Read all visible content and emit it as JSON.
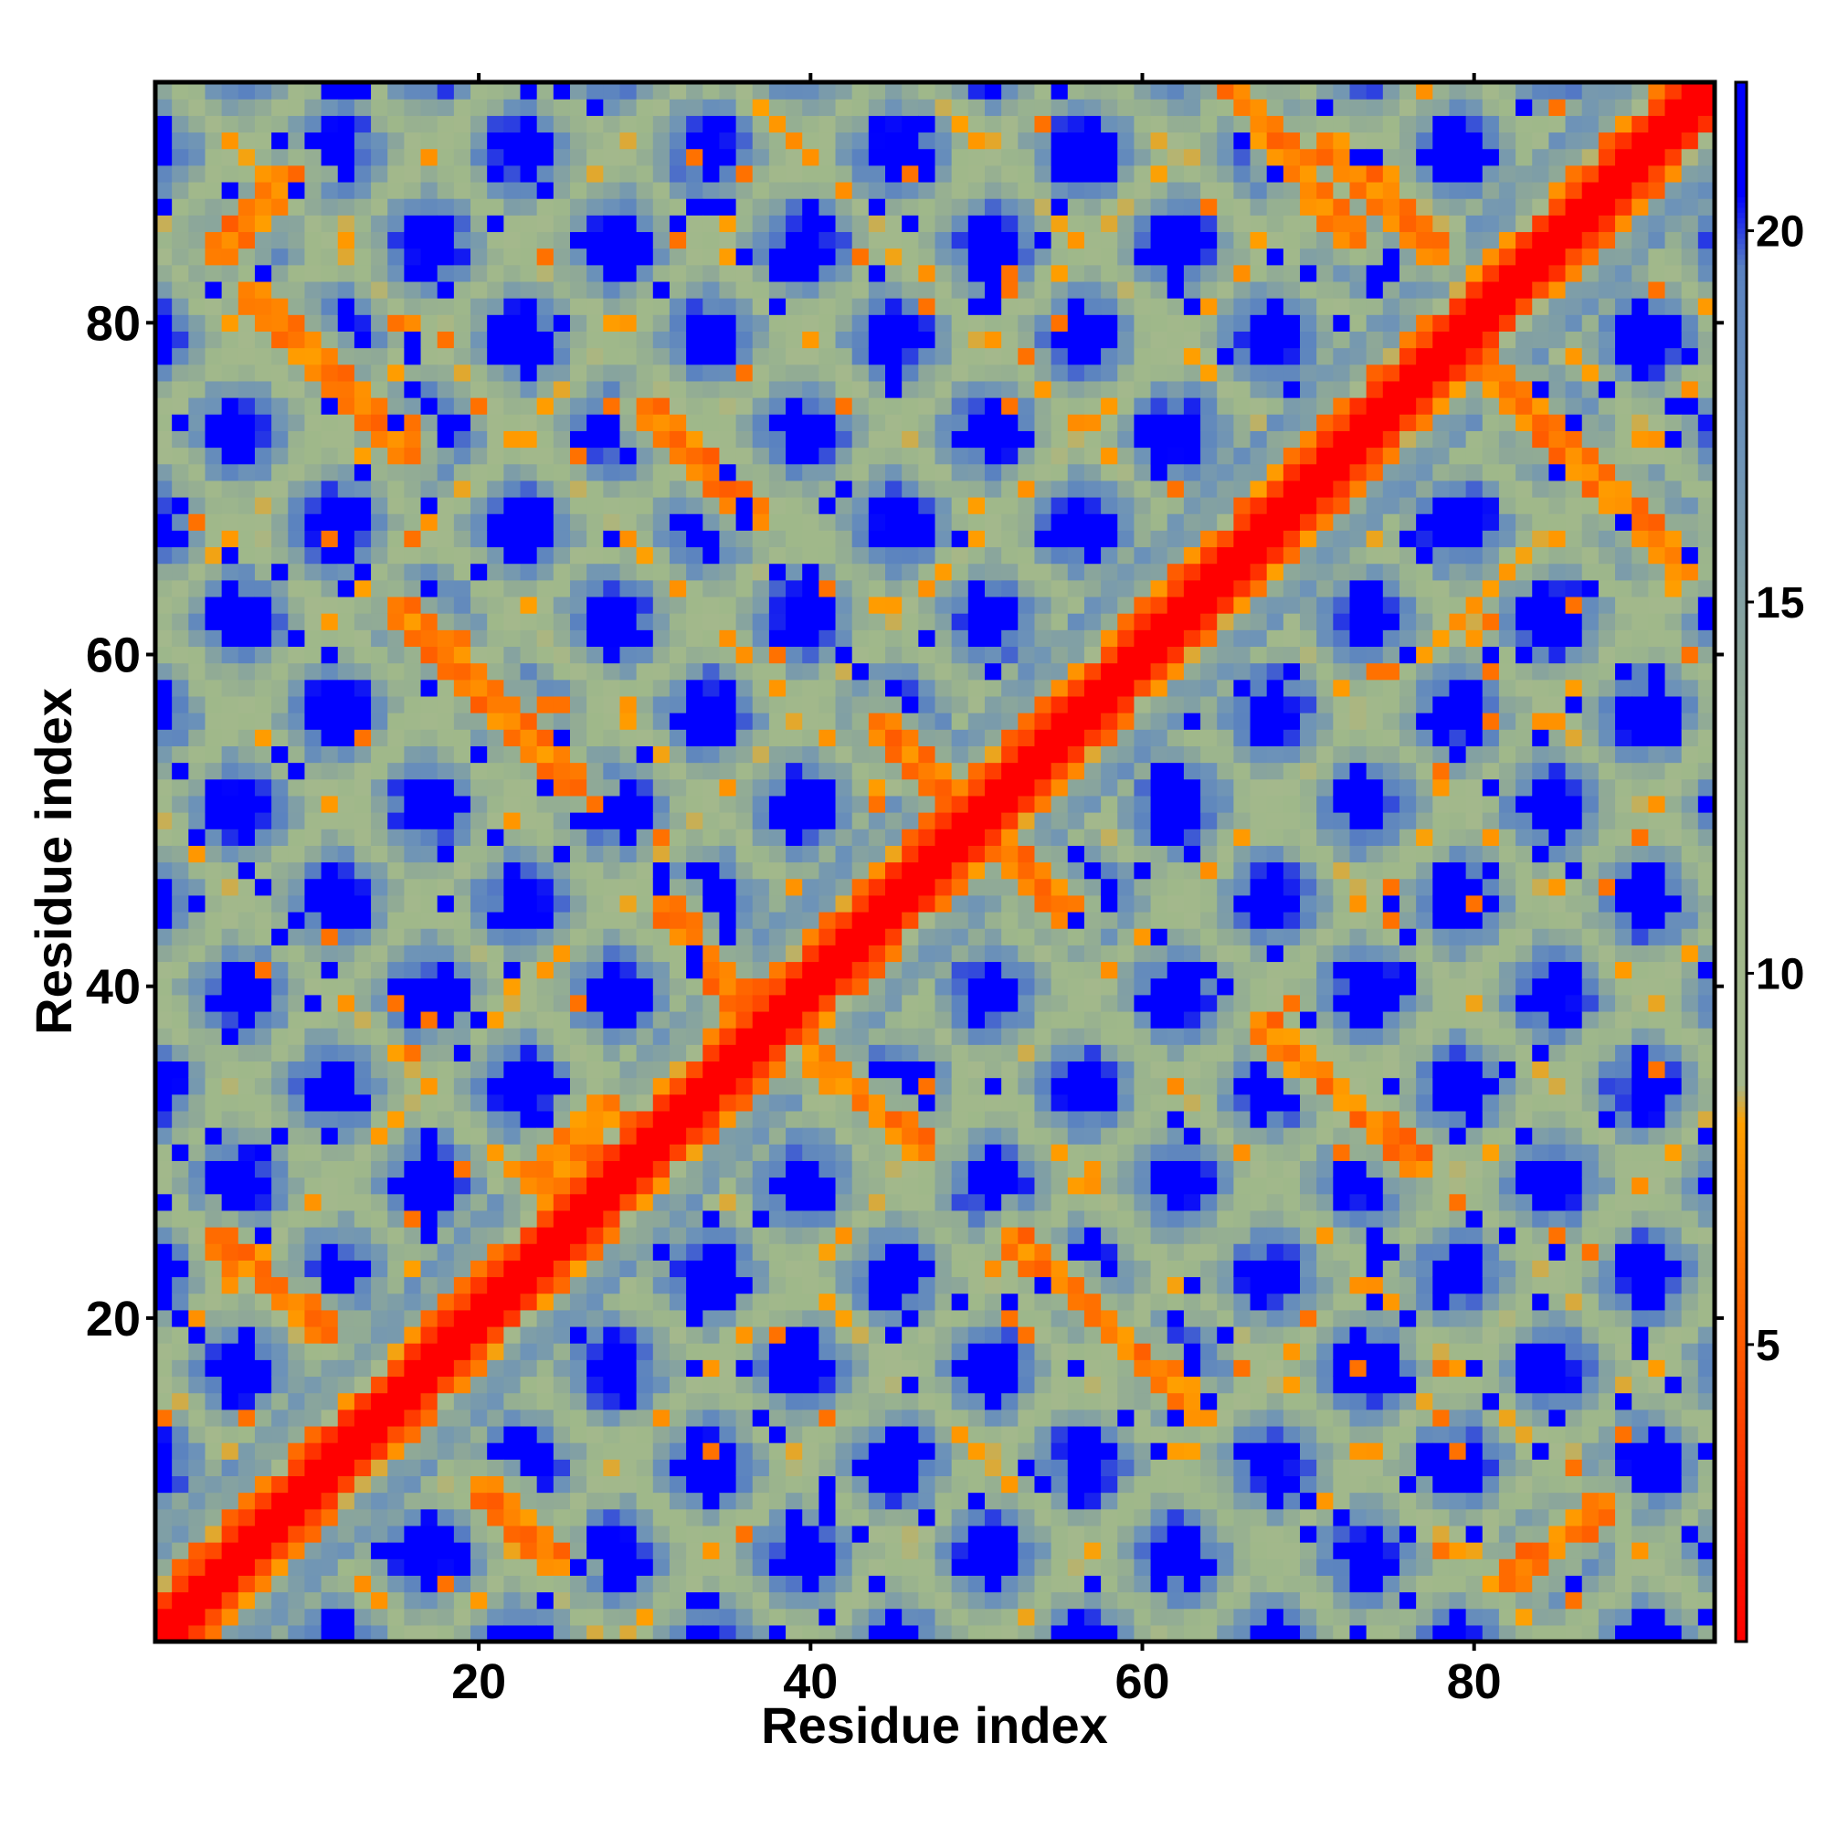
{
  "chart_data": {
    "type": "heatmap",
    "title": "",
    "xlabel": "Residue index",
    "ylabel": "Residue index",
    "n_residues": 94,
    "xlim": [
      1,
      94
    ],
    "ylim": [
      1,
      94
    ],
    "x_ticks": [
      20,
      40,
      60,
      80
    ],
    "y_ticks": [
      20,
      40,
      60,
      80
    ],
    "colorbar": {
      "ticks": [
        5,
        10,
        15,
        20
      ],
      "range": [
        1,
        22
      ],
      "stops": [
        {
          "value": 1,
          "color": "#ff0000"
        },
        {
          "value": 5,
          "color": "#ff5a00"
        },
        {
          "value": 8,
          "color": "#ffa000"
        },
        {
          "value": 8.5,
          "color": "#a4b88c"
        },
        {
          "value": 11,
          "color": "#9fb88a"
        },
        {
          "value": 14,
          "color": "#8ea898"
        },
        {
          "value": 17,
          "color": "#6d93b8"
        },
        {
          "value": 19.5,
          "color": "#5a82c0"
        },
        {
          "value": 20.5,
          "color": "#0000ff"
        }
      ]
    },
    "contact_bands": [
      {
        "type": "diagonal",
        "description": "main diagonal i=j",
        "value": 1
      },
      {
        "type": "anti",
        "from": [
          6,
          82
        ],
        "to": [
          16,
          72
        ],
        "value": 6
      },
      {
        "type": "anti",
        "from": [
          15,
          63
        ],
        "to": [
          26,
          52
        ],
        "value": 6
      },
      {
        "type": "anti",
        "from": [
          30,
          75
        ],
        "to": [
          37,
          68
        ],
        "value": 6
      },
      {
        "type": "anti",
        "from": [
          31,
          45
        ],
        "to": [
          36,
          39
        ],
        "value": 6
      },
      {
        "type": "anti",
        "from": [
          40,
          36
        ],
        "to": [
          47,
          30
        ],
        "value": 6
      },
      {
        "type": "anti",
        "from": [
          44,
          56
        ],
        "to": [
          56,
          44
        ],
        "value": 6
      },
      {
        "type": "anti",
        "from": [
          52,
          25
        ],
        "to": [
          64,
          14
        ],
        "value": 6
      },
      {
        "type": "anti",
        "from": [
          4,
          25
        ],
        "to": [
          11,
          19
        ],
        "value": 6
      },
      {
        "type": "anti",
        "from": [
          20,
          10
        ],
        "to": [
          25,
          5
        ],
        "value": 6
      },
      {
        "type": "anti",
        "from": [
          64,
          96
        ],
        "to": [
          73,
          85
        ],
        "value": 6
      },
      {
        "type": "anti",
        "from": [
          71,
          91
        ],
        "to": [
          78,
          84
        ],
        "value": 6
      },
      {
        "type": "anti",
        "from": [
          67,
          38
        ],
        "to": [
          77,
          29
        ],
        "value": 6
      },
      {
        "type": "anti",
        "from": [
          80,
          78
        ],
        "to": [
          93,
          65
        ],
        "value": 6
      },
      {
        "type": "anti",
        "from": [
          82,
          4
        ],
        "to": [
          88,
          9
        ],
        "value": 6
      },
      {
        "type": "parallel",
        "from": [
          4,
          84
        ],
        "to": [
          9,
          89
        ],
        "value": 6
      },
      {
        "type": "parallel",
        "from": [
          61,
          60
        ],
        "to": [
          67,
          66
        ],
        "value": 6
      },
      {
        "type": "parallel",
        "from": [
          23,
          28
        ],
        "to": [
          28,
          33
        ],
        "value": 6
      }
    ]
  }
}
